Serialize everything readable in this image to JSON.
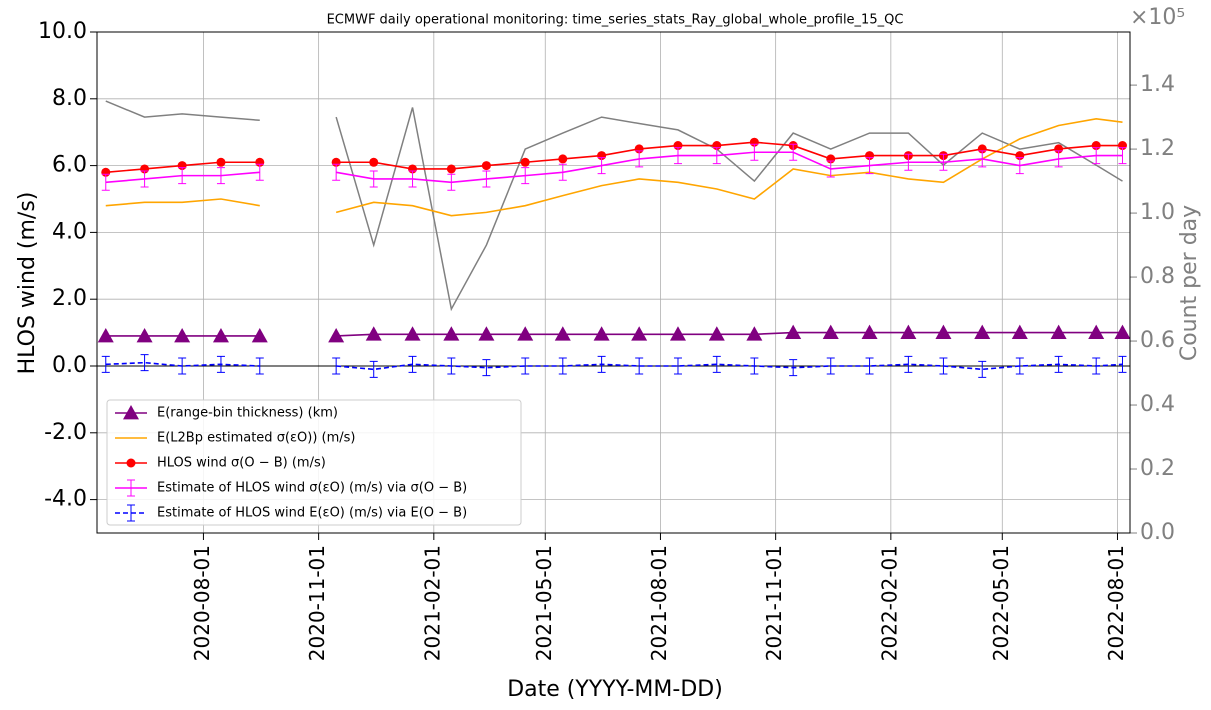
{
  "chart_data": {
    "type": "line",
    "title": "ECMWF daily operational monitoring: time_series_stats_Ray_global_whole_profile_15_QC",
    "x_label": "Date (YYYY-MM-DD)",
    "y_label": "HLOS wind (m/s)",
    "y2_label": "Count per day",
    "y2_offset_label": "×10⁵",
    "grid": true,
    "legend": "lower left",
    "x": [
      "2020-05-15",
      "2020-06-15",
      "2020-07-15",
      "2020-08-15",
      "2020-09-15",
      "2020-10-15",
      "2020-11-15",
      "2020-12-15",
      "2021-01-15",
      "2021-02-15",
      "2021-03-15",
      "2021-04-15",
      "2021-05-15",
      "2021-06-15",
      "2021-07-15",
      "2021-08-15",
      "2021-09-15",
      "2021-10-15",
      "2021-11-15",
      "2021-12-15",
      "2022-01-15",
      "2022-02-15",
      "2022-03-15",
      "2022-04-15",
      "2022-05-15",
      "2022-06-15",
      "2022-07-15",
      "2022-08-05"
    ],
    "xlim": [
      "2020-05-08",
      "2022-08-11"
    ],
    "xticks": [
      "2020-08-01",
      "2020-11-01",
      "2021-02-01",
      "2021-05-01",
      "2021-08-01",
      "2021-11-01",
      "2022-02-01",
      "2022-05-01",
      "2022-08-01"
    ],
    "ylim": [
      -5,
      10
    ],
    "yticks": [
      {
        "value": -4,
        "label": "-4.0"
      },
      {
        "value": -2,
        "label": "-2.0"
      },
      {
        "value": 0,
        "label": "0.0"
      },
      {
        "value": 2,
        "label": "2.0"
      },
      {
        "value": 4,
        "label": "4.0"
      },
      {
        "value": 6,
        "label": "6.0"
      },
      {
        "value": 8,
        "label": "8.0"
      },
      {
        "value": 10,
        "label": "10.0"
      }
    ],
    "y2lim": [
      0,
      1.566
    ],
    "y2ticks": [
      {
        "value": 0,
        "label": "0.0"
      },
      0.2,
      0.4,
      0.6,
      0.8,
      {
        "value": 1,
        "label": "1.0"
      },
      1.2,
      1.4
    ],
    "series": [
      {
        "color": "#808080",
        "axis": "y2",
        "values": [
          1.35,
          1.3,
          1.31,
          1.3,
          1.29,
          null,
          1.3,
          0.9,
          1.33,
          0.7,
          0.9,
          1.2,
          1.25,
          1.3,
          1.28,
          1.26,
          1.2,
          1.1,
          1.25,
          1.2,
          1.25,
          1.25,
          1.15,
          1.25,
          1.2,
          1.22,
          1.15,
          1.1
        ]
      },
      {
        "name": "E(range-bin thickness) (km)",
        "color": "#800080",
        "marker": "triangle",
        "values": [
          0.9,
          0.9,
          0.9,
          0.9,
          0.9,
          null,
          0.9,
          0.95,
          0.95,
          0.95,
          0.95,
          0.95,
          0.95,
          0.95,
          0.95,
          0.95,
          0.95,
          0.95,
          1.0,
          1.0,
          1.0,
          1.0,
          1.0,
          1.0,
          1.0,
          1.0,
          1.0,
          1.0
        ]
      },
      {
        "name": "E(L2Bp estimated σ(εO)) (m/s)",
        "color": "#ffa500",
        "values": [
          4.8,
          4.9,
          4.9,
          5.0,
          4.8,
          null,
          4.6,
          4.9,
          4.8,
          4.5,
          4.6,
          4.8,
          5.1,
          5.4,
          5.6,
          5.5,
          5.3,
          5.0,
          5.9,
          5.7,
          5.8,
          5.6,
          5.5,
          6.2,
          6.8,
          7.2,
          7.4,
          7.3
        ]
      },
      {
        "name": "HLOS wind σ(O − B) (m/s)",
        "color": "#ff0000",
        "marker": "circle",
        "values": [
          5.8,
          5.9,
          6.0,
          6.1,
          6.1,
          null,
          6.1,
          6.1,
          5.9,
          5.9,
          6.0,
          6.1,
          6.2,
          6.3,
          6.5,
          6.6,
          6.6,
          6.7,
          6.6,
          6.2,
          6.3,
          6.3,
          6.3,
          6.5,
          6.3,
          6.5,
          6.6,
          6.6
        ]
      },
      {
        "name": "Estimate of HLOS wind σ(εO) (m/s) via σ(O − B)",
        "color": "#ff00ff",
        "marker": "errorbar",
        "values": [
          5.5,
          5.6,
          5.7,
          5.7,
          5.8,
          null,
          5.8,
          5.6,
          5.6,
          5.5,
          5.6,
          5.7,
          5.8,
          6.0,
          6.2,
          6.3,
          6.3,
          6.4,
          6.4,
          5.9,
          6.0,
          6.1,
          6.1,
          6.2,
          6.0,
          6.2,
          6.3,
          6.3
        ]
      },
      {
        "name": "Estimate of HLOS wind E(εO) (m/s) via E(O − B)",
        "color": "#0000ff",
        "marker": "errorbar",
        "dashed": true,
        "values": [
          0.05,
          0.1,
          0.0,
          0.05,
          0.0,
          null,
          0.0,
          -0.1,
          0.05,
          0.0,
          -0.05,
          0.0,
          0.0,
          0.05,
          0.0,
          0.0,
          0.05,
          0.0,
          -0.05,
          0.0,
          0.0,
          0.05,
          0.0,
          -0.1,
          0.0,
          0.05,
          0.0,
          0.05
        ]
      }
    ]
  }
}
